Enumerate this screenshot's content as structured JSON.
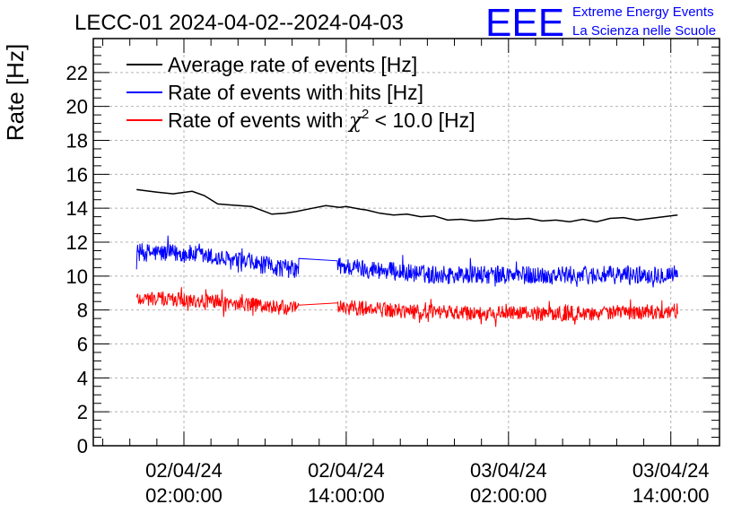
{
  "header": {
    "title": "LECC-01 2024-04-02--2024-04-03",
    "logo_text": "EEE",
    "logo_line1": "Extreme Energy Events",
    "logo_line2": "La Scienza nelle Scuole"
  },
  "colors": {
    "average": "#000000",
    "hits": "#0000ff",
    "chi2": "#ff0000",
    "grid": "#b4b4b4",
    "logo": "#0000ff"
  },
  "chart_data": {
    "type": "line",
    "title": "LECC-01 2024-04-02--2024-04-03",
    "xlabel": "",
    "ylabel": "Rate [Hz]",
    "x_unit": "hours since 2024-04-02 00:00:00",
    "xlim": [
      -4.7,
      41.6
    ],
    "ylim": [
      0,
      24
    ],
    "yticks": [
      0,
      2,
      4,
      6,
      8,
      10,
      12,
      14,
      16,
      18,
      20,
      22
    ],
    "xticks": [
      {
        "value": 2,
        "line1": "02/04/24",
        "line2": "02:00:00"
      },
      {
        "value": 14,
        "line1": "02/04/24",
        "line2": "14:00:00"
      },
      {
        "value": 26,
        "line1": "03/04/24",
        "line2": "02:00:00"
      },
      {
        "value": 38,
        "line1": "03/04/24",
        "line2": "14:00:00"
      }
    ],
    "grid": true,
    "legend": {
      "position": "top-left",
      "entries": [
        {
          "label": "Average rate of events [Hz]",
          "prefix": "",
          "suffix": "",
          "series": "average"
        },
        {
          "label": "Rate of events with hits [Hz]",
          "prefix": "",
          "suffix": "",
          "series": "hits"
        },
        {
          "prefix": "Rate of events with ",
          "symbol": "χ",
          "sup": "2",
          "suffix": " < 10.0 [Hz]",
          "series": "chi2"
        }
      ]
    },
    "series": [
      {
        "name": "Average rate of events [Hz]",
        "key": "average",
        "x": [
          -1.5,
          0.0,
          1.2,
          2.6,
          3.5,
          4.5,
          5.3,
          7.0,
          8.5,
          9.5,
          10.3,
          11.5,
          12.5,
          13.5,
          14.0,
          15.0,
          15.5,
          16.5,
          17.5,
          18.5,
          19.5,
          20.5,
          21.5,
          22.5,
          23.5,
          24.5,
          25.5,
          26.5,
          27.5,
          28.5,
          29.5,
          30.5,
          31.5,
          32.5,
          33.5,
          34.5,
          35.5,
          36.5,
          37.5,
          38.5
        ],
        "y": [
          15.1,
          14.95,
          14.85,
          15.0,
          14.75,
          14.25,
          14.2,
          14.1,
          13.65,
          13.7,
          13.8,
          14.0,
          14.15,
          14.05,
          14.1,
          13.95,
          13.9,
          13.7,
          13.6,
          13.65,
          13.5,
          13.55,
          13.3,
          13.35,
          13.25,
          13.3,
          13.4,
          13.35,
          13.4,
          13.25,
          13.3,
          13.2,
          13.35,
          13.2,
          13.4,
          13.45,
          13.3,
          13.4,
          13.5,
          13.6
        ]
      },
      {
        "name": "Rate of events with hits [Hz]",
        "key": "hits",
        "x_start": -1.5,
        "x_end": 38.5,
        "gap": [
          10.5,
          13.3
        ],
        "trend_x": [
          -1.5,
          2.5,
          5.5,
          10.5,
          13.3,
          16.0,
          20.0,
          25.0,
          30.0,
          35.0,
          38.5
        ],
        "trend_y": [
          11.4,
          11.3,
          10.9,
          10.35,
          10.6,
          10.4,
          10.1,
          10.05,
          10.05,
          10.05,
          10.15
        ],
        "noise_amplitude": 0.55
      },
      {
        "name": "Rate of events with chi2 < 10.0 [Hz]",
        "key": "chi2",
        "x_start": -1.5,
        "x_end": 38.5,
        "gap": [
          10.5,
          13.3
        ],
        "trend_x": [
          -1.5,
          2.5,
          5.5,
          10.5,
          13.3,
          16.0,
          20.0,
          25.0,
          30.0,
          35.0,
          38.5
        ],
        "trend_y": [
          8.7,
          8.6,
          8.4,
          8.05,
          8.2,
          8.05,
          7.85,
          7.8,
          7.8,
          7.85,
          7.95
        ],
        "noise_amplitude": 0.45
      }
    ]
  }
}
